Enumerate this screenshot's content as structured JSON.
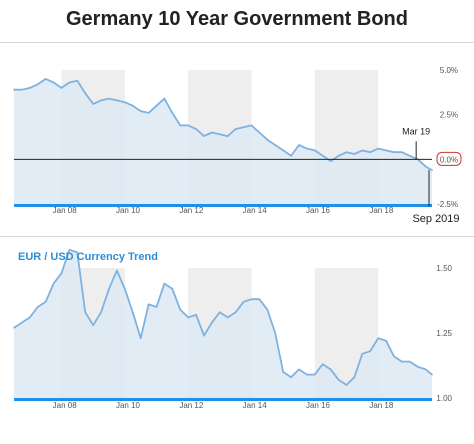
{
  "page_title": "Germany 10 Year Government Bond",
  "chart_data": [
    {
      "type": "area",
      "title": "Germany 10 Year Government Bond",
      "x_tick_labels": [
        "Jan 08",
        "Jan 10",
        "Jan 12",
        "Jan 14",
        "Jan 16",
        "Jan 18"
      ],
      "y_tick_labels": [
        "5.0%",
        "2.5%",
        "0.0%",
        "-2.5%"
      ],
      "ylim": [
        -2.5,
        5.0
      ],
      "x_range": [
        2006.5,
        2019.7
      ],
      "shaded_bands": [
        [
          2008.0,
          2010.0
        ],
        [
          2012.0,
          2014.0
        ],
        [
          2016.0,
          2018.0
        ]
      ],
      "reference_line": 0.0,
      "annotations": [
        {
          "label": "Mar 19",
          "x": 2019.2,
          "y": 0.0
        },
        {
          "label": "Sep 2019",
          "x": 2019.7,
          "y": -0.6
        }
      ],
      "x": [
        2006.5,
        2006.75,
        2007.0,
        2007.25,
        2007.5,
        2007.75,
        2008.0,
        2008.25,
        2008.5,
        2008.75,
        2009.0,
        2009.25,
        2009.5,
        2009.75,
        2010.0,
        2010.25,
        2010.5,
        2010.75,
        2011.0,
        2011.25,
        2011.5,
        2011.75,
        2012.0,
        2012.25,
        2012.5,
        2012.75,
        2013.0,
        2013.25,
        2013.5,
        2013.75,
        2014.0,
        2014.25,
        2014.5,
        2014.75,
        2015.0,
        2015.25,
        2015.5,
        2015.75,
        2016.0,
        2016.25,
        2016.5,
        2016.75,
        2017.0,
        2017.25,
        2017.5,
        2017.75,
        2018.0,
        2018.25,
        2018.5,
        2018.75,
        2019.0,
        2019.25,
        2019.5,
        2019.7
      ],
      "values": [
        3.9,
        3.9,
        4.0,
        4.2,
        4.5,
        4.3,
        4.0,
        4.3,
        4.4,
        3.7,
        3.1,
        3.3,
        3.4,
        3.3,
        3.2,
        3.0,
        2.7,
        2.6,
        3.0,
        3.4,
        2.6,
        1.9,
        1.9,
        1.7,
        1.3,
        1.5,
        1.4,
        1.3,
        1.7,
        1.8,
        1.9,
        1.5,
        1.1,
        0.8,
        0.5,
        0.2,
        0.8,
        0.6,
        0.5,
        0.2,
        -0.1,
        0.2,
        0.4,
        0.3,
        0.5,
        0.4,
        0.6,
        0.5,
        0.4,
        0.4,
        0.2,
        0.0,
        -0.4,
        -0.6
      ]
    },
    {
      "type": "area",
      "title": "EUR / USD Currency Trend",
      "x_tick_labels": [
        "Jan 08",
        "Jan 10",
        "Jan 12",
        "Jan 14",
        "Jan 16",
        "Jan 18"
      ],
      "y_tick_labels": [
        "1.50",
        "1.25",
        "1.00"
      ],
      "ylim": [
        1.0,
        1.5
      ],
      "x_range": [
        2006.5,
        2019.7
      ],
      "shaded_bands": [
        [
          2008.0,
          2010.0
        ],
        [
          2012.0,
          2014.0
        ],
        [
          2016.0,
          2018.0
        ]
      ],
      "x": [
        2006.5,
        2006.75,
        2007.0,
        2007.25,
        2007.5,
        2007.75,
        2008.0,
        2008.25,
        2008.5,
        2008.75,
        2009.0,
        2009.25,
        2009.5,
        2009.75,
        2010.0,
        2010.25,
        2010.5,
        2010.75,
        2011.0,
        2011.25,
        2011.5,
        2011.75,
        2012.0,
        2012.25,
        2012.5,
        2012.75,
        2013.0,
        2013.25,
        2013.5,
        2013.75,
        2014.0,
        2014.25,
        2014.5,
        2014.75,
        2015.0,
        2015.25,
        2015.5,
        2015.75,
        2016.0,
        2016.25,
        2016.5,
        2016.75,
        2017.0,
        2017.25,
        2017.5,
        2017.75,
        2018.0,
        2018.25,
        2018.5,
        2018.75,
        2019.0,
        2019.25,
        2019.5,
        2019.7
      ],
      "values": [
        1.27,
        1.29,
        1.31,
        1.35,
        1.37,
        1.44,
        1.48,
        1.57,
        1.56,
        1.33,
        1.28,
        1.33,
        1.42,
        1.49,
        1.42,
        1.33,
        1.23,
        1.36,
        1.35,
        1.44,
        1.42,
        1.34,
        1.31,
        1.32,
        1.24,
        1.29,
        1.33,
        1.31,
        1.33,
        1.37,
        1.38,
        1.38,
        1.34,
        1.25,
        1.1,
        1.08,
        1.11,
        1.09,
        1.09,
        1.13,
        1.11,
        1.07,
        1.05,
        1.08,
        1.17,
        1.18,
        1.23,
        1.22,
        1.16,
        1.14,
        1.14,
        1.12,
        1.11,
        1.09
      ]
    }
  ],
  "panel2_title": "EUR / USD Currency Trend",
  "colors": {
    "line": "#7fb2e0",
    "fill": "#dde9f3",
    "band": "#eeeeee",
    "baseline": "#1e90e8",
    "ref_line": "#222222",
    "zero_badge": "#cc3333"
  }
}
